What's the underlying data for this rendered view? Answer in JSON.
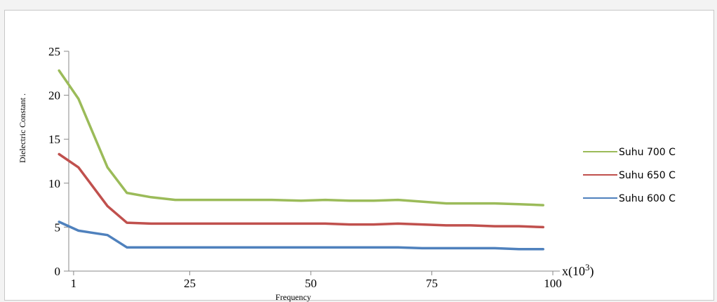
{
  "chart_data": {
    "type": "line",
    "title": "",
    "xlabel": "Frequency",
    "ylabel": "Dielectric Constant .",
    "x_multiplier": "x(10",
    "x_multiplier_exp": "3",
    "x_multiplier_close": ")",
    "xlim": [
      0,
      100
    ],
    "ylim": [
      0,
      25
    ],
    "x_ticks": [
      1,
      25,
      50,
      75,
      100
    ],
    "y_ticks": [
      0,
      5,
      10,
      15,
      20,
      25
    ],
    "grid": false,
    "legend_position": "right",
    "x": [
      -2,
      2,
      8,
      12,
      17,
      22,
      28,
      35,
      42,
      48,
      53,
      58,
      63,
      68,
      73,
      78,
      83,
      88,
      93,
      98
    ],
    "series": [
      {
        "name": "Suhu 700 C",
        "color": "#9bbb59",
        "values": [
          22.8,
          19.6,
          11.8,
          8.9,
          8.4,
          8.1,
          8.1,
          8.1,
          8.1,
          8.0,
          8.1,
          8.0,
          8.0,
          8.1,
          7.9,
          7.7,
          7.7,
          7.7,
          7.6,
          7.5
        ]
      },
      {
        "name": "Suhu 650 C",
        "color": "#c0504d",
        "values": [
          13.3,
          11.8,
          7.4,
          5.5,
          5.4,
          5.4,
          5.4,
          5.4,
          5.4,
          5.4,
          5.4,
          5.3,
          5.3,
          5.4,
          5.3,
          5.2,
          5.2,
          5.1,
          5.1,
          5.0
        ]
      },
      {
        "name": "Suhu 600 C",
        "color": "#4f81bd",
        "values": [
          5.6,
          4.6,
          4.1,
          2.7,
          2.7,
          2.7,
          2.7,
          2.7,
          2.7,
          2.7,
          2.7,
          2.7,
          2.7,
          2.7,
          2.6,
          2.6,
          2.6,
          2.6,
          2.5,
          2.5
        ]
      }
    ]
  }
}
